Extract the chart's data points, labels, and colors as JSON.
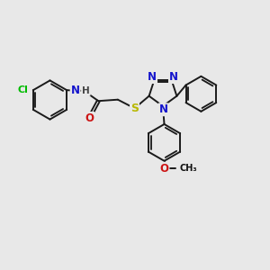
{
  "bg_color": "#e8e8e8",
  "bond_color": "#1a1a1a",
  "bond_width": 1.4,
  "atom_colors": {
    "N": "#1414cc",
    "O": "#cc1414",
    "S": "#b8b800",
    "Cl": "#00bb00",
    "H": "#444444"
  },
  "font_size": 8.5,
  "fig_size": [
    3.0,
    3.0
  ],
  "dpi": 100
}
